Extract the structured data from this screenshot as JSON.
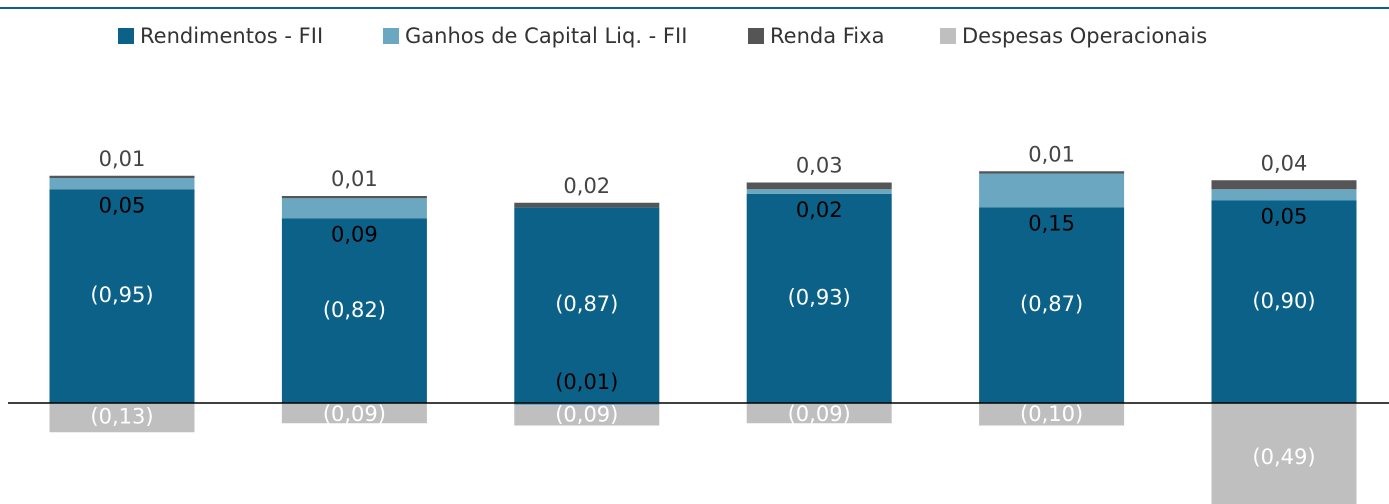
{
  "chart_data": {
    "type": "stacked-bar",
    "categories": [
      null,
      null,
      null,
      null,
      null,
      null
    ],
    "series": [
      {
        "name": "Rendimentos - FII",
        "color": "#0b6187",
        "values": [
          0.95,
          0.82,
          0.87,
          0.93,
          0.87,
          0.9
        ],
        "value_labels": [
          "(0,95)",
          "(0,82)",
          "(0,87)",
          "(0,93)",
          "(0,87)",
          "(0,90)"
        ]
      },
      {
        "name": "Ganhos de Capital Liq. - FII",
        "color": "#6ba7c0",
        "values": [
          0.05,
          0.09,
          -0.01,
          0.02,
          0.15,
          0.05
        ],
        "value_labels": [
          "0,05",
          "0,09",
          "(0,01)",
          "0,02",
          "0,15",
          "0,05"
        ]
      },
      {
        "name": "Renda Fixa",
        "color": "#555555",
        "values": [
          0.01,
          0.01,
          0.02,
          0.03,
          0.01,
          0.04
        ],
        "value_labels": [
          "0,01",
          "0,01",
          "0,02",
          "0,03",
          "0,01",
          "0,04"
        ]
      },
      {
        "name": "Despesas Operacionais",
        "color": "#bfbfbf",
        "values": [
          -0.13,
          -0.09,
          -0.09,
          -0.09,
          -0.1,
          -0.49
        ],
        "value_labels": [
          "(0,13)",
          "(0,09)",
          "(0,09)",
          "(0,09)",
          "(0,10)",
          "(0,49)"
        ]
      }
    ],
    "legend": "top"
  }
}
